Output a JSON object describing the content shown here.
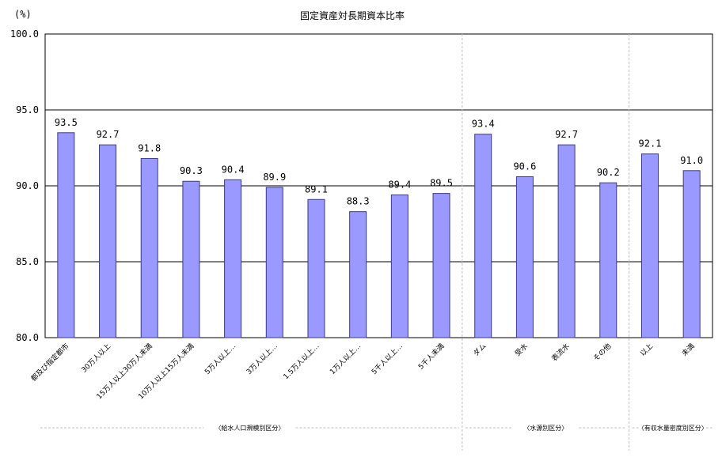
{
  "chart_data": {
    "type": "bar",
    "title": "固定資産対長期資本比率",
    "ylabel": "(%)",
    "ylim": [
      80,
      100
    ],
    "yticks": [
      "80.0",
      "85.0",
      "90.0",
      "95.0",
      "100.0"
    ],
    "grid": true,
    "categories": [
      "都及び指定都市",
      "30万人以上",
      "15万人以上30万人未満",
      "10万人以上15万人未満",
      "5万人以上…",
      "3万人以上…",
      "1.5万人以上…",
      "1万人以上…",
      "5千人以上…",
      "5千人未満",
      "ダム",
      "受水",
      "表流水",
      "その他",
      "以上",
      "未満"
    ],
    "series": [
      {
        "values": [
          93.5,
          92.7,
          91.8,
          90.3,
          90.4,
          89.9,
          89.1,
          88.3,
          89.4,
          89.5,
          93.4,
          90.6,
          92.7,
          90.2,
          92.1,
          91.0
        ]
      }
    ],
    "value_labels": [
      "93.5",
      "92.7",
      "91.8",
      "90.3",
      "90.4",
      "89.9",
      "89.1",
      "88.3",
      "89.4",
      "89.5",
      "93.4",
      "90.6",
      "92.7",
      "90.2",
      "92.1",
      "91.0"
    ],
    "groups": [
      {
        "label": "〈給水人口規模別区分〉",
        "start": 0,
        "end": 9
      },
      {
        "label": "〈水源別区分〉",
        "start": 10,
        "end": 13
      },
      {
        "label": "〈有収水量密度別区分〉",
        "start": 14,
        "end": 15
      }
    ],
    "colors": {
      "bar": "#9999ff",
      "bar_stroke": "#3a3a8c",
      "grid": "#000000",
      "separator": "#c0c0c0"
    }
  }
}
